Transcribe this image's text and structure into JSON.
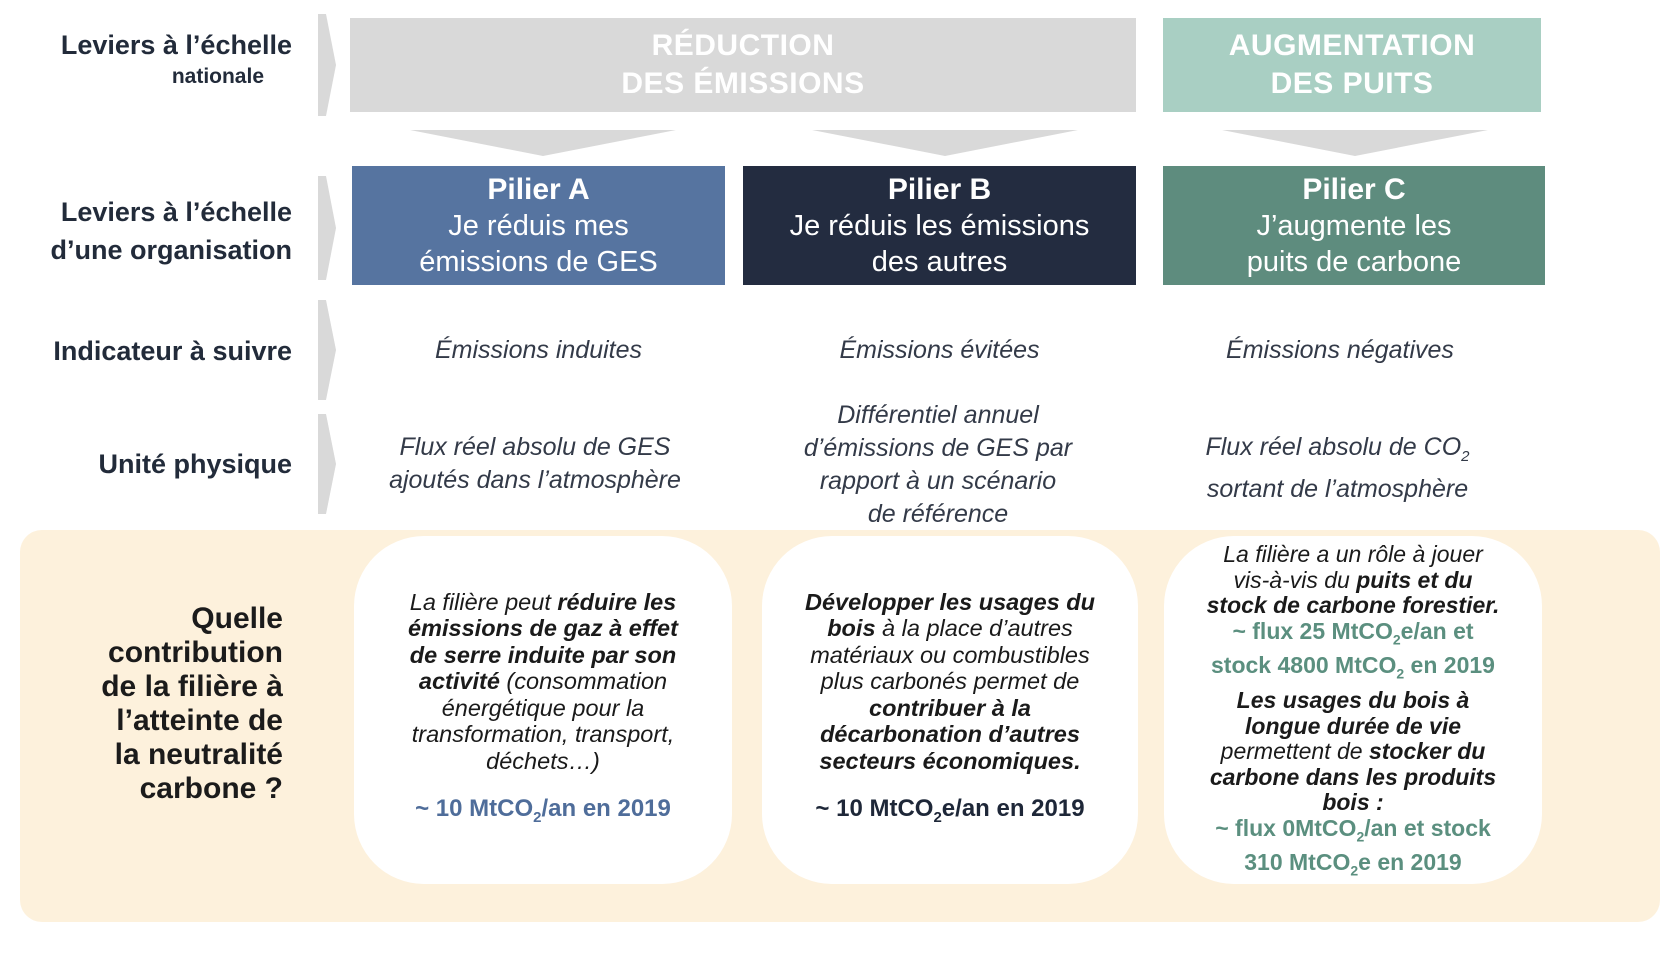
{
  "row_labels": {
    "national_line1": "Leviers à l’échelle",
    "national_line2": "nationale",
    "org_line1": "Leviers à l’échelle",
    "org_line2": "d’une organisation",
    "indicator": "Indicateur à suivre",
    "unit": "Unité physique",
    "question": [
      "Quelle",
      "contribution",
      "de la filière à",
      "l’atteinte de",
      "la neutralité",
      "carbone ?"
    ]
  },
  "headers": {
    "reduction_line1": "RÉDUCTION",
    "reduction_line2": "DES ÉMISSIONS",
    "augmentation_line1": "AUGMENTATION",
    "augmentation_line2": "DES PUITS"
  },
  "pillars": [
    {
      "title": "Pilier A",
      "line1": "Je réduis mes",
      "line2": "émissions de GES",
      "color": "#5674a0",
      "indicator": "Émissions induites",
      "unit": [
        "Flux réel absolu de GES",
        "ajoutés dans l’atmosphère"
      ]
    },
    {
      "title": "Pilier B",
      "line1": "Je réduis les émissions",
      "line2": "des autres",
      "color": "#232c40",
      "indicator": "Émissions évitées",
      "unit": [
        "Différentiel annuel",
        "d’émissions de GES par",
        "rapport à un scénario",
        "de référence"
      ]
    },
    {
      "title": "Pilier C",
      "line1": "J’augmente les",
      "line2": "puits de carbone",
      "color": "#5e8c7e",
      "indicator": "Émissions négatives",
      "unit_a": "Flux réel absolu de CO",
      "unit_a_sub": "2",
      "unit_b": "sortant de l’atmosphère"
    }
  ],
  "cards": {
    "a": {
      "t1": "La filière peut ",
      "b1": "réduire les",
      "b2": "émissions de gaz à effet",
      "b3": "de serre induite par son",
      "b4": "activité",
      "t2": " (consommation",
      "t3": "énergétique pour la",
      "t4": "transformation, transport,",
      "t5": "déchets…)",
      "stat_a": "~ 10 MtCO",
      "stat_sub": "2",
      "stat_b": "/an en 2019"
    },
    "b": {
      "b1": "Développer les usages du",
      "b2": "bois",
      "t1": " à la place d’autres",
      "t2": "matériaux ou combustibles",
      "t3": "plus carbonés permet de",
      "b3": "contribuer à la",
      "b4": "décarbonation d’autres",
      "b5": "secteurs économiques.",
      "stat_a": "~ 10 MtCO",
      "stat_sub": "2",
      "stat_b": "e/an en 2019"
    },
    "c": {
      "t1": "La filière a un rôle à jouer",
      "t2": "vis-à-vis du ",
      "b1": "puits et du",
      "b2": "stock de carbone forestier.",
      "g1a": "~ flux 25 MtCO",
      "g1s": "2",
      "g1b": "e/an et",
      "g2a": "stock 4800 MtCO",
      "g2s": "2",
      "g2b": " en 2019",
      "b3": "Les usages du bois à",
      "b4": "longue durée de vie",
      "t3": "permettent de ",
      "b5": "stocker du",
      "b6": "carbone dans les produits",
      "b7": "bois :",
      "g3a": "~  flux 0MtCO",
      "g3s": "2",
      "g3b": "/an et stock",
      "g4a": "310 MtCO",
      "g4s": "2",
      "g4b": "e en 2019"
    }
  },
  "colors": {
    "header_grey": "#d9d9d9",
    "header_green": "#a9cfc3",
    "band": "#fdf1dc",
    "accent_blue": "#4f6d9a",
    "accent_green": "#5b8f7f"
  }
}
